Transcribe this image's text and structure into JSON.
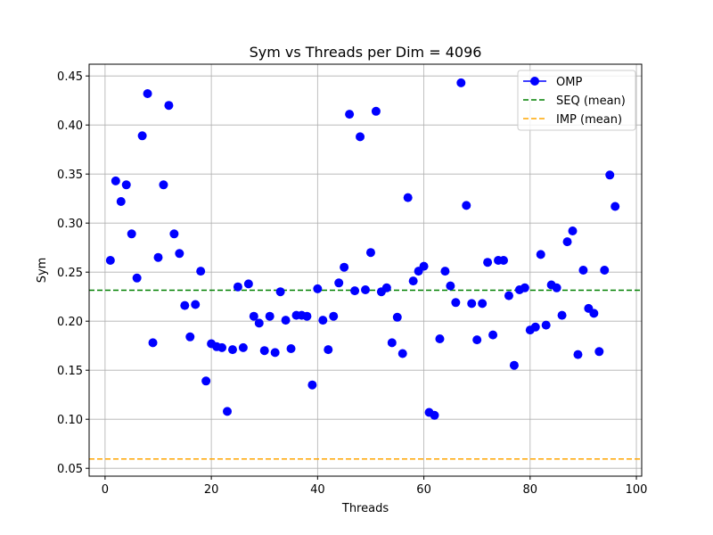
{
  "chart_data": {
    "type": "scatter",
    "title": "Sym vs Threads per Dim = 4096",
    "xlabel": "Threads",
    "ylabel": "Sym",
    "xlim": [
      -3,
      101
    ],
    "ylim": [
      0.042,
      0.462
    ],
    "xticks": [
      0,
      20,
      40,
      60,
      80,
      100
    ],
    "yticks": [
      0.05,
      0.1,
      0.15,
      0.2,
      0.25,
      0.3,
      0.35,
      0.4,
      0.45
    ],
    "grid": true,
    "legend_position": "top-right",
    "series": [
      {
        "name": "OMP",
        "color": "#0000ff",
        "marker": "circle",
        "line": true,
        "points": [
          [
            1,
            0.262
          ],
          [
            2,
            0.343
          ],
          [
            3,
            0.322
          ],
          [
            4,
            0.339
          ],
          [
            5,
            0.289
          ],
          [
            6,
            0.244
          ],
          [
            7,
            0.389
          ],
          [
            8,
            0.432
          ],
          [
            9,
            0.178
          ],
          [
            10,
            0.265
          ],
          [
            11,
            0.339
          ],
          [
            12,
            0.42
          ],
          [
            13,
            0.289
          ],
          [
            14,
            0.269
          ],
          [
            15,
            0.216
          ],
          [
            16,
            0.184
          ],
          [
            17,
            0.217
          ],
          [
            18,
            0.251
          ],
          [
            19,
            0.139
          ],
          [
            20,
            0.177
          ],
          [
            21,
            0.174
          ],
          [
            22,
            0.173
          ],
          [
            23,
            0.108
          ],
          [
            24,
            0.171
          ],
          [
            25,
            0.235
          ],
          [
            26,
            0.173
          ],
          [
            27,
            0.238
          ],
          [
            28,
            0.205
          ],
          [
            29,
            0.198
          ],
          [
            30,
            0.17
          ],
          [
            31,
            0.205
          ],
          [
            32,
            0.168
          ],
          [
            33,
            0.23
          ],
          [
            34,
            0.201
          ],
          [
            35,
            0.172
          ],
          [
            36,
            0.206
          ],
          [
            37,
            0.206
          ],
          [
            38,
            0.205
          ],
          [
            39,
            0.135
          ],
          [
            40,
            0.233
          ],
          [
            41,
            0.201
          ],
          [
            42,
            0.171
          ],
          [
            43,
            0.205
          ],
          [
            44,
            0.239
          ],
          [
            45,
            0.255
          ],
          [
            46,
            0.411
          ],
          [
            47,
            0.231
          ],
          [
            48,
            0.388
          ],
          [
            49,
            0.232
          ],
          [
            50,
            0.27
          ],
          [
            51,
            0.414
          ],
          [
            52,
            0.23
          ],
          [
            53,
            0.234
          ],
          [
            54,
            0.178
          ],
          [
            55,
            0.204
          ],
          [
            56,
            0.167
          ],
          [
            57,
            0.326
          ],
          [
            58,
            0.241
          ],
          [
            59,
            0.251
          ],
          [
            60,
            0.256
          ],
          [
            61,
            0.107
          ],
          [
            62,
            0.104
          ],
          [
            63,
            0.182
          ],
          [
            64,
            0.251
          ],
          [
            65,
            0.236
          ],
          [
            66,
            0.219
          ],
          [
            67,
            0.443
          ],
          [
            68,
            0.318
          ],
          [
            69,
            0.218
          ],
          [
            70,
            0.181
          ],
          [
            71,
            0.218
          ],
          [
            72,
            0.26
          ],
          [
            73,
            0.186
          ],
          [
            74,
            0.262
          ],
          [
            75,
            0.262
          ],
          [
            76,
            0.226
          ],
          [
            77,
            0.155
          ],
          [
            78,
            0.232
          ],
          [
            79,
            0.234
          ],
          [
            80,
            0.191
          ],
          [
            81,
            0.194
          ],
          [
            82,
            0.268
          ],
          [
            83,
            0.196
          ],
          [
            84,
            0.237
          ],
          [
            85,
            0.234
          ],
          [
            86,
            0.206
          ],
          [
            87,
            0.281
          ],
          [
            88,
            0.292
          ],
          [
            89,
            0.166
          ],
          [
            90,
            0.252
          ],
          [
            91,
            0.213
          ],
          [
            92,
            0.208
          ],
          [
            93,
            0.169
          ],
          [
            94,
            0.252
          ],
          [
            95,
            0.349
          ],
          [
            96,
            0.317
          ]
        ]
      }
    ],
    "reference_lines": [
      {
        "name": "SEQ (mean)",
        "value": 0.2315,
        "color": "#008000",
        "style": "dashed"
      },
      {
        "name": "IMP (mean)",
        "value": 0.0595,
        "color": "#ffa500",
        "style": "dashed"
      }
    ]
  }
}
